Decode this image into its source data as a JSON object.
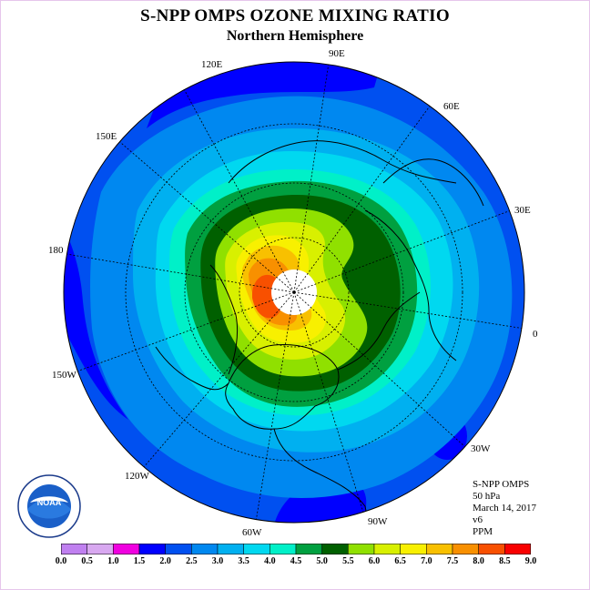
{
  "title": "S-NPP OMPS OZONE MIXING RATIO",
  "subtitle": "Northern Hemisphere",
  "longitude_labels": [
    "120E",
    "90E",
    "60E",
    "150E",
    "30E",
    "180",
    "0",
    "150W",
    "30W",
    "120W",
    "90W",
    "60W"
  ],
  "info": {
    "instrument": "S-NPP OMPS",
    "level": "50 hPa",
    "date": "March 14, 2017",
    "version": "v6",
    "units": "PPM"
  },
  "logo_text": "NOAA",
  "colorbar": {
    "labels": [
      "0.0",
      "0.5",
      "1.0",
      "1.5",
      "2.0",
      "2.5",
      "3.0",
      "3.5",
      "4.0",
      "4.5",
      "5.0",
      "5.5",
      "6.0",
      "6.5",
      "7.0",
      "7.5",
      "8.0",
      "8.5",
      "9.0"
    ],
    "colors": [
      "#c080f0",
      "#d8a8f0",
      "#f000e0",
      "#0000ff",
      "#0050f0",
      "#0088f0",
      "#00b0f0",
      "#00d8f0",
      "#00f0c8",
      "#00a040",
      "#006000",
      "#90e000",
      "#d8f000",
      "#f8f000",
      "#f8c000",
      "#f89000",
      "#f85000",
      "#f80000",
      "#805030"
    ]
  },
  "colors": {
    "ocean_outer": "#0050f0",
    "outline": "#000000",
    "border": "#e6c6ec"
  }
}
